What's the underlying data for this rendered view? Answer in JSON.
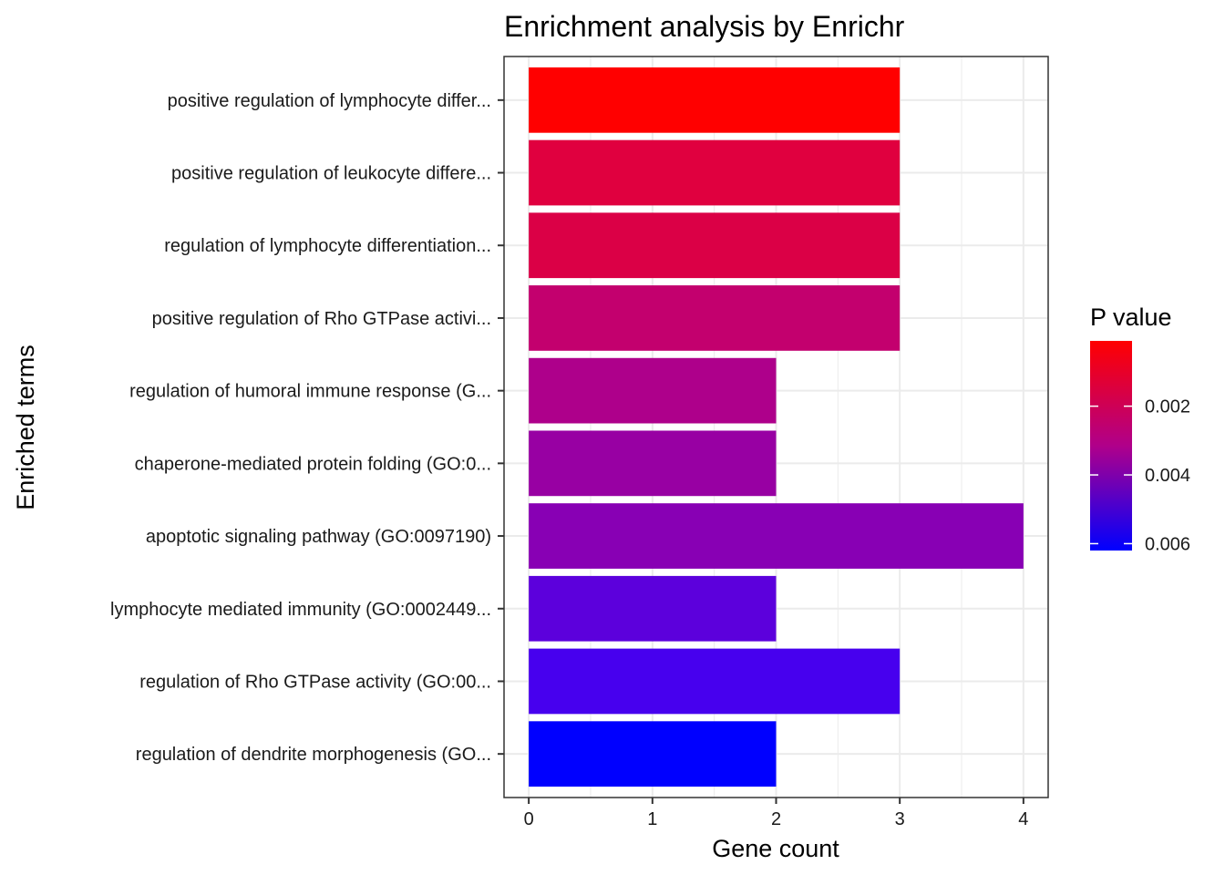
{
  "chart_data": {
    "type": "bar",
    "orientation": "horizontal",
    "title": "Enrichment analysis by Enrichr",
    "xlabel": "Gene count",
    "ylabel": "Enriched terms",
    "xlim": [
      -0.2,
      4.2
    ],
    "x_ticks": [
      "0",
      "1",
      "2",
      "3",
      "4"
    ],
    "x_tick_values": [
      0,
      1,
      2,
      3,
      4
    ],
    "grid": true,
    "categories": [
      "positive regulation of lymphocyte differ...",
      "positive regulation of leukocyte differe...",
      "regulation of lymphocyte differentiation...",
      "positive regulation of Rho GTPase activi...",
      "regulation of humoral immune response (G...",
      "chaperone-mediated protein folding (GO:0...",
      "apoptotic signaling pathway (GO:0097190)",
      "lymphocyte mediated immunity (GO:0002449...",
      "regulation of Rho GTPase activity (GO:00...",
      "regulation of dendrite morphogenesis (GO..."
    ],
    "values": [
      3,
      3,
      3,
      3,
      2,
      2,
      4,
      2,
      3,
      2
    ],
    "bar_colors": [
      "#FF0000",
      "#E0003F",
      "#DB0046",
      "#C3006E",
      "#AE008B",
      "#9800A3",
      "#8800B4",
      "#5C00DC",
      "#4700EE",
      "#0000FF"
    ],
    "legend": {
      "title": "P value",
      "position": "right",
      "colors": [
        "#0000FF",
        "#FF0000"
      ],
      "ticks": [
        "0.002",
        "0.004",
        "0.006"
      ],
      "tick_values": [
        0.002,
        0.004,
        0.006
      ],
      "range": [
        0.0001,
        0.0062
      ]
    }
  }
}
